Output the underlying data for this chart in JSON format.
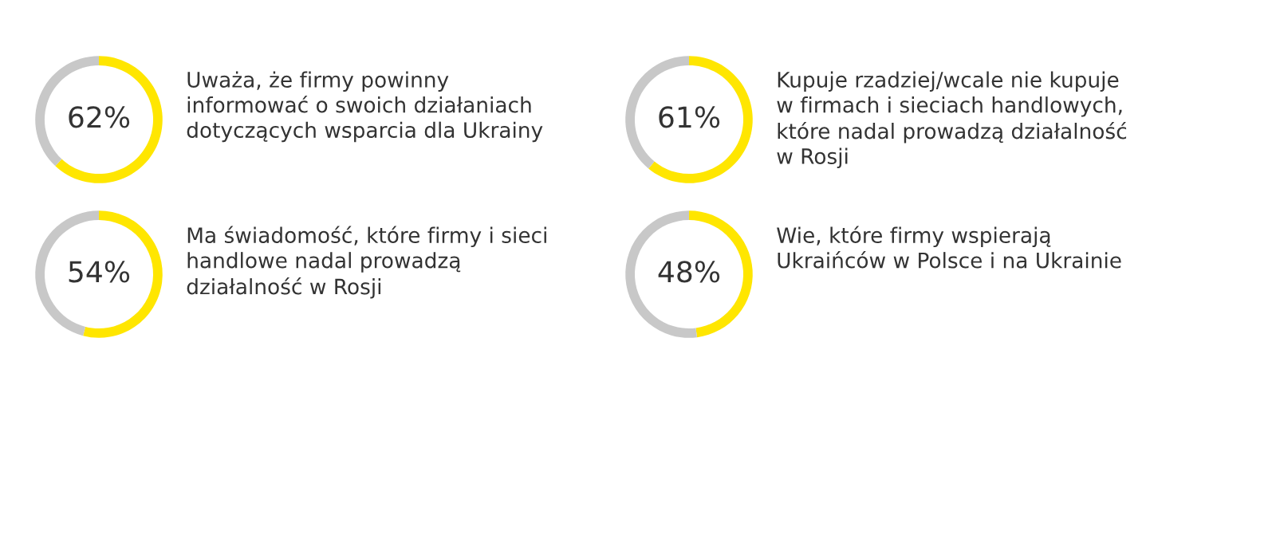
{
  "chart_data": [
    {
      "type": "donut",
      "title": "Uważa, że firmy powinny\ninformować o swoich działaniach\ndotyczących wsparcia dla Ukrainy",
      "categories": [
        null,
        null
      ],
      "values": [
        62,
        38
      ],
      "colors": [
        "#ffe600",
        "#c8c8c8"
      ],
      "value_labels": [
        "62%",
        null
      ]
    },
    {
      "type": "donut",
      "title": "Kupuje rzadziej/wcale nie kupuje\nw firmach i sieciach handlowych,\nktóre nadal prowadzą działalność\nw Rosji",
      "categories": [
        null,
        null
      ],
      "values": [
        61,
        39
      ],
      "colors": [
        "#ffe600",
        "#c8c8c8"
      ],
      "value_labels": [
        "61%",
        null
      ]
    },
    {
      "type": "donut",
      "title": "Ma świadomość, które firmy i sieci\nhandlowe nadal prowadzą\ndziałalność w Rosji",
      "categories": [
        null,
        null
      ],
      "values": [
        54,
        46
      ],
      "colors": [
        "#ffe600",
        "#c8c8c8"
      ],
      "value_labels": [
        "54%",
        null
      ]
    },
    {
      "type": "donut",
      "title": "Wie, które firmy wspierają\nUkraińców w Polsce i na Ukrainie",
      "categories": [
        null,
        null
      ],
      "values": [
        48,
        52
      ],
      "colors": [
        "#ffe600",
        "#c8c8c8"
      ],
      "value_labels": [
        "48%",
        null
      ]
    }
  ]
}
